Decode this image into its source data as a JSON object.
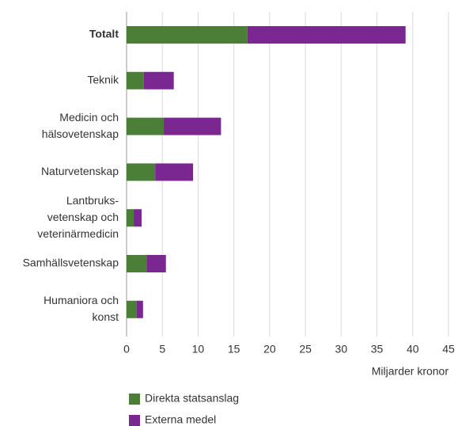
{
  "chart_data": {
    "type": "bar",
    "orientation": "horizontal",
    "stacked": true,
    "categories": [
      [
        "Totalt"
      ],
      [
        "Teknik"
      ],
      [
        "Medicin och",
        "hälsovetenskap"
      ],
      [
        "Naturvetenskap"
      ],
      [
        "Lantbruks-",
        "vetenskap och",
        "veterinärmedicin"
      ],
      [
        "Samhällsvetenskap"
      ],
      [
        "Humaniora och",
        "konst"
      ]
    ],
    "series": [
      {
        "name": "Direkta statsanslag",
        "color": "#4b7f37",
        "values": [
          16.9,
          2.4,
          5.2,
          4.0,
          1.0,
          2.8,
          1.4
        ]
      },
      {
        "name": "Externa medel",
        "color": "#7b2792",
        "values": [
          22.1,
          4.2,
          8.0,
          5.3,
          1.1,
          2.7,
          0.9
        ]
      }
    ],
    "xlim": [
      0,
      45
    ],
    "xticks": [
      0,
      5,
      10,
      15,
      20,
      25,
      30,
      35,
      40,
      45
    ],
    "xlabel": "Miljarder kronor",
    "grid": true,
    "legend": "bottom"
  }
}
